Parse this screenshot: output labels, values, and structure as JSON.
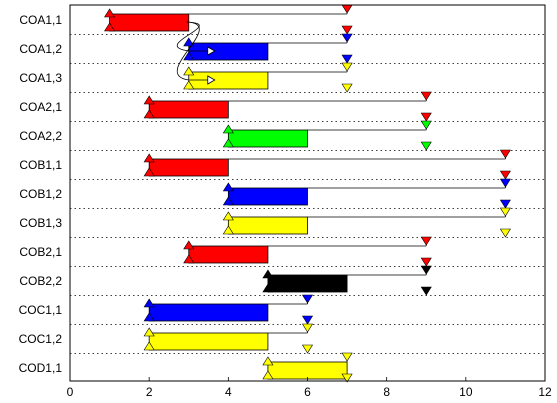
{
  "chart_data": {
    "type": "gantt",
    "xlim": [
      0,
      12
    ],
    "x_ticks": [
      "0",
      "2",
      "4",
      "6",
      "8",
      "10",
      "12"
    ],
    "grid": "horizontal dotted",
    "rows": [
      {
        "label": "COA1,1",
        "start": 1,
        "end": 3,
        "color": "#ff0000",
        "deadline": 7
      },
      {
        "label": "COA1,2",
        "start": 3,
        "end": 5,
        "color": "#0000ff",
        "deadline": 7
      },
      {
        "label": "COA1,3",
        "start": 3,
        "end": 5,
        "color": "#ffff00",
        "deadline": 7
      },
      {
        "label": "COA2,1",
        "start": 2,
        "end": 4,
        "color": "#ff0000",
        "deadline": 9
      },
      {
        "label": "COA2,2",
        "start": 4,
        "end": 6,
        "color": "#00ff00",
        "deadline": 9
      },
      {
        "label": "COB1,1",
        "start": 2,
        "end": 4,
        "color": "#ff0000",
        "deadline": 11
      },
      {
        "label": "COB1,2",
        "start": 4,
        "end": 6,
        "color": "#0000ff",
        "deadline": 11
      },
      {
        "label": "COB1,3",
        "start": 4,
        "end": 6,
        "color": "#ffff00",
        "deadline": 11
      },
      {
        "label": "COB2,1",
        "start": 3,
        "end": 5,
        "color": "#ff0000",
        "deadline": 9
      },
      {
        "label": "COB2,2",
        "start": 5,
        "end": 7,
        "color": "#000000",
        "deadline": 9
      },
      {
        "label": "COC1,1",
        "start": 2,
        "end": 5,
        "color": "#0000ff",
        "deadline": 6
      },
      {
        "label": "COC1,2",
        "start": 2,
        "end": 5,
        "color": "#ffff00",
        "deadline": 6
      },
      {
        "label": "COD1,1",
        "start": 5,
        "end": 7,
        "color": "#ffff00",
        "deadline": 7
      }
    ],
    "dependency_arrows": [
      {
        "from_row": 0,
        "to_row": 1,
        "x": 3
      },
      {
        "from_row": 0,
        "to_row": 2,
        "x": 3
      }
    ]
  }
}
